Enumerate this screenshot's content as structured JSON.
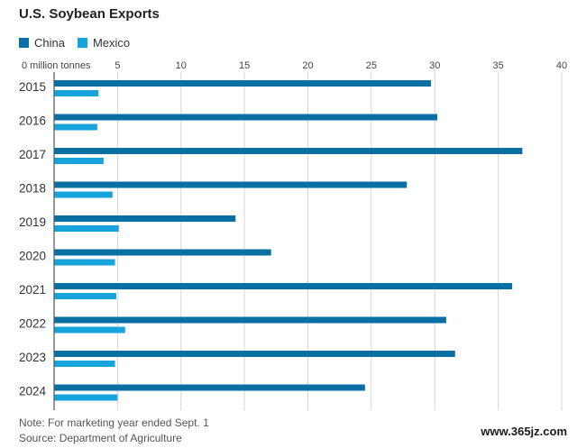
{
  "chart_data": {
    "type": "bar",
    "orientation": "horizontal",
    "title": "U.S. Soybean Exports",
    "x_tick_labels": [
      "0 million tonnes",
      "5",
      "10",
      "15",
      "20",
      "25",
      "30",
      "35",
      "40"
    ],
    "xlim": [
      0,
      40
    ],
    "categories": [
      "2015",
      "2016",
      "2017",
      "2018",
      "2019",
      "2020",
      "2021",
      "2022",
      "2023",
      "2024"
    ],
    "series": [
      {
        "name": "China",
        "color": "#0a6fa3",
        "values": [
          29.7,
          30.2,
          36.9,
          27.8,
          14.3,
          17.1,
          36.1,
          30.9,
          31.6,
          24.5
        ]
      },
      {
        "name": "Mexico",
        "color": "#17a3dc",
        "values": [
          3.5,
          3.4,
          3.9,
          4.6,
          5.1,
          4.8,
          4.9,
          5.6,
          4.8,
          5.0
        ]
      }
    ],
    "grid": true,
    "legend_position": "top-left"
  },
  "footer": {
    "note": "Note: For marketing year ended Sept. 1",
    "source": "Source: Department of Agriculture"
  },
  "watermark": "www.365jz.com"
}
